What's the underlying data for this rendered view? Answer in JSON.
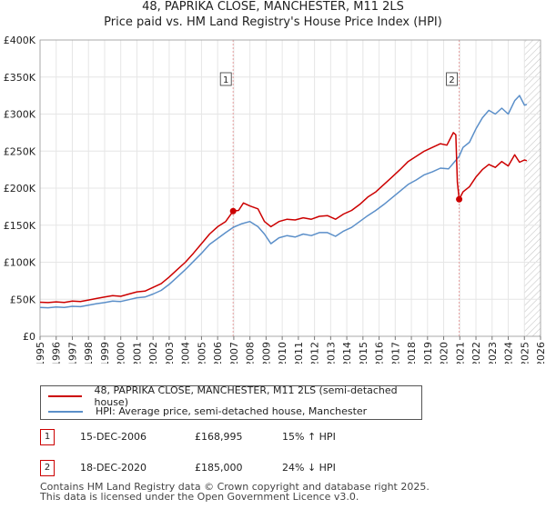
{
  "title": {
    "line1": "48, PAPRIKA CLOSE, MANCHESTER, M11 2LS",
    "line2": "Price paid vs. HM Land Registry's House Price Index (HPI)"
  },
  "colors": {
    "property": "#cc0000",
    "hpi": "#5b8fc9",
    "marker_vline": "#e8a0a0",
    "shade": "#dde6f2"
  },
  "chart_data": {
    "type": "line",
    "xlim": [
      1995,
      2026
    ],
    "ylim": [
      0,
      400000
    ],
    "y_ticks": [
      0,
      50000,
      100000,
      150000,
      200000,
      250000,
      300000,
      350000,
      400000
    ],
    "y_tick_labels": [
      "£0",
      "£50K",
      "£100K",
      "£150K",
      "£200K",
      "£250K",
      "£300K",
      "£350K",
      "£400K"
    ],
    "x_ticks": [
      1995,
      1996,
      1997,
      1998,
      1999,
      2000,
      2001,
      2002,
      2003,
      2004,
      2005,
      2006,
      2007,
      2008,
      2009,
      2010,
      2011,
      2012,
      2013,
      2014,
      2015,
      2016,
      2017,
      2018,
      2019,
      2020,
      2021,
      2022,
      2023,
      2024,
      2025,
      2026
    ],
    "x_tick_labels": [
      "1995",
      "1996",
      "1997",
      "1998",
      "1999",
      "2000",
      "2001",
      "2002",
      "2003",
      "2004",
      "2005",
      "2006",
      "2007",
      "2008",
      "2009",
      "2010",
      "2011",
      "2012",
      "2013",
      "2014",
      "2015",
      "2016",
      "2017",
      "2018",
      "2019",
      "2020",
      "2021",
      "2022",
      "2023",
      "2024",
      "2025",
      "2026"
    ],
    "shaded_future_from": 2025.0,
    "series": [
      {
        "name": "48, PAPRIKA CLOSE, MANCHESTER, M11 2LS (semi-detached house)",
        "key": "property",
        "points": [
          [
            1995.0,
            46000
          ],
          [
            1995.5,
            45500
          ],
          [
            1996.0,
            46500
          ],
          [
            1996.5,
            45800
          ],
          [
            1997.0,
            47500
          ],
          [
            1997.5,
            47000
          ],
          [
            1998.0,
            49000
          ],
          [
            1998.5,
            51000
          ],
          [
            1999.0,
            53000
          ],
          [
            1999.5,
            55000
          ],
          [
            2000.0,
            54000
          ],
          [
            2000.5,
            57000
          ],
          [
            2001.0,
            60000
          ],
          [
            2001.5,
            61000
          ],
          [
            2002.0,
            66000
          ],
          [
            2002.5,
            71000
          ],
          [
            2003.0,
            80000
          ],
          [
            2003.5,
            90000
          ],
          [
            2004.0,
            100000
          ],
          [
            2004.5,
            112000
          ],
          [
            2005.0,
            125000
          ],
          [
            2005.5,
            138000
          ],
          [
            2006.0,
            148000
          ],
          [
            2006.5,
            155000
          ],
          [
            2006.96,
            168995
          ],
          [
            2007.3,
            170000
          ],
          [
            2007.6,
            180000
          ],
          [
            2008.0,
            176000
          ],
          [
            2008.5,
            172000
          ],
          [
            2008.9,
            155000
          ],
          [
            2009.3,
            148000
          ],
          [
            2009.8,
            155000
          ],
          [
            2010.3,
            158000
          ],
          [
            2010.8,
            157000
          ],
          [
            2011.3,
            160000
          ],
          [
            2011.8,
            158000
          ],
          [
            2012.3,
            162000
          ],
          [
            2012.8,
            163000
          ],
          [
            2013.3,
            158000
          ],
          [
            2013.8,
            165000
          ],
          [
            2014.3,
            170000
          ],
          [
            2014.8,
            178000
          ],
          [
            2015.3,
            188000
          ],
          [
            2015.8,
            195000
          ],
          [
            2016.3,
            205000
          ],
          [
            2016.8,
            215000
          ],
          [
            2017.3,
            225000
          ],
          [
            2017.8,
            236000
          ],
          [
            2018.3,
            243000
          ],
          [
            2018.8,
            250000
          ],
          [
            2019.3,
            255000
          ],
          [
            2019.8,
            260000
          ],
          [
            2020.2,
            258000
          ],
          [
            2020.6,
            275000
          ],
          [
            2020.75,
            272000
          ],
          [
            2020.85,
            208000
          ],
          [
            2020.96,
            185000
          ],
          [
            2021.2,
            195000
          ],
          [
            2021.6,
            202000
          ],
          [
            2022.0,
            215000
          ],
          [
            2022.4,
            225000
          ],
          [
            2022.8,
            232000
          ],
          [
            2023.2,
            228000
          ],
          [
            2023.6,
            236000
          ],
          [
            2024.0,
            230000
          ],
          [
            2024.4,
            245000
          ],
          [
            2024.7,
            235000
          ],
          [
            2025.0,
            238000
          ],
          [
            2025.15,
            237000
          ]
        ]
      },
      {
        "name": "HPI: Average price, semi-detached house, Manchester",
        "key": "hpi",
        "points": [
          [
            1995.0,
            39000
          ],
          [
            1995.5,
            38500
          ],
          [
            1996.0,
            39500
          ],
          [
            1996.5,
            39000
          ],
          [
            1997.0,
            40500
          ],
          [
            1997.5,
            40000
          ],
          [
            1998.0,
            42000
          ],
          [
            1998.5,
            44000
          ],
          [
            1999.0,
            45500
          ],
          [
            1999.5,
            47500
          ],
          [
            2000.0,
            47000
          ],
          [
            2000.5,
            49500
          ],
          [
            2001.0,
            52000
          ],
          [
            2001.5,
            53000
          ],
          [
            2002.0,
            57000
          ],
          [
            2002.5,
            62000
          ],
          [
            2003.0,
            70000
          ],
          [
            2003.5,
            80000
          ],
          [
            2004.0,
            90000
          ],
          [
            2004.5,
            101000
          ],
          [
            2005.0,
            112000
          ],
          [
            2005.5,
            124000
          ],
          [
            2006.0,
            132000
          ],
          [
            2006.5,
            140000
          ],
          [
            2006.96,
            147000
          ],
          [
            2007.5,
            152000
          ],
          [
            2008.0,
            155000
          ],
          [
            2008.5,
            148000
          ],
          [
            2008.9,
            138000
          ],
          [
            2009.3,
            125000
          ],
          [
            2009.8,
            133000
          ],
          [
            2010.3,
            136000
          ],
          [
            2010.8,
            134000
          ],
          [
            2011.3,
            138000
          ],
          [
            2011.8,
            136000
          ],
          [
            2012.3,
            140000
          ],
          [
            2012.8,
            140000
          ],
          [
            2013.3,
            135000
          ],
          [
            2013.8,
            142000
          ],
          [
            2014.3,
            147000
          ],
          [
            2014.8,
            155000
          ],
          [
            2015.3,
            163000
          ],
          [
            2015.8,
            170000
          ],
          [
            2016.3,
            178000
          ],
          [
            2016.8,
            187000
          ],
          [
            2017.3,
            196000
          ],
          [
            2017.8,
            205000
          ],
          [
            2018.3,
            211000
          ],
          [
            2018.8,
            218000
          ],
          [
            2019.3,
            222000
          ],
          [
            2019.8,
            227000
          ],
          [
            2020.3,
            226000
          ],
          [
            2020.96,
            243000
          ],
          [
            2021.2,
            255000
          ],
          [
            2021.6,
            262000
          ],
          [
            2022.0,
            280000
          ],
          [
            2022.4,
            295000
          ],
          [
            2022.8,
            305000
          ],
          [
            2023.2,
            300000
          ],
          [
            2023.6,
            308000
          ],
          [
            2024.0,
            300000
          ],
          [
            2024.4,
            318000
          ],
          [
            2024.7,
            325000
          ],
          [
            2025.0,
            312000
          ],
          [
            2025.15,
            313000
          ]
        ]
      }
    ],
    "sales": [
      {
        "id": "1",
        "year": 2006.96,
        "price": 168995
      },
      {
        "id": "2",
        "year": 2020.96,
        "price": 185000
      }
    ]
  },
  "legend": {
    "property_label": "48, PAPRIKA CLOSE, MANCHESTER, M11 2LS (semi-detached house)",
    "hpi_label": "HPI: Average price, semi-detached house, Manchester"
  },
  "transactions": [
    {
      "num": "1",
      "date": "15-DEC-2006",
      "price": "£168,995",
      "hpi": "15% ↑ HPI"
    },
    {
      "num": "2",
      "date": "18-DEC-2020",
      "price": "£185,000",
      "hpi": "24% ↓ HPI"
    }
  ],
  "footer": {
    "line1": "Contains HM Land Registry data © Crown copyright and database right 2025.",
    "line2": "This data is licensed under the Open Government Licence v3.0."
  }
}
